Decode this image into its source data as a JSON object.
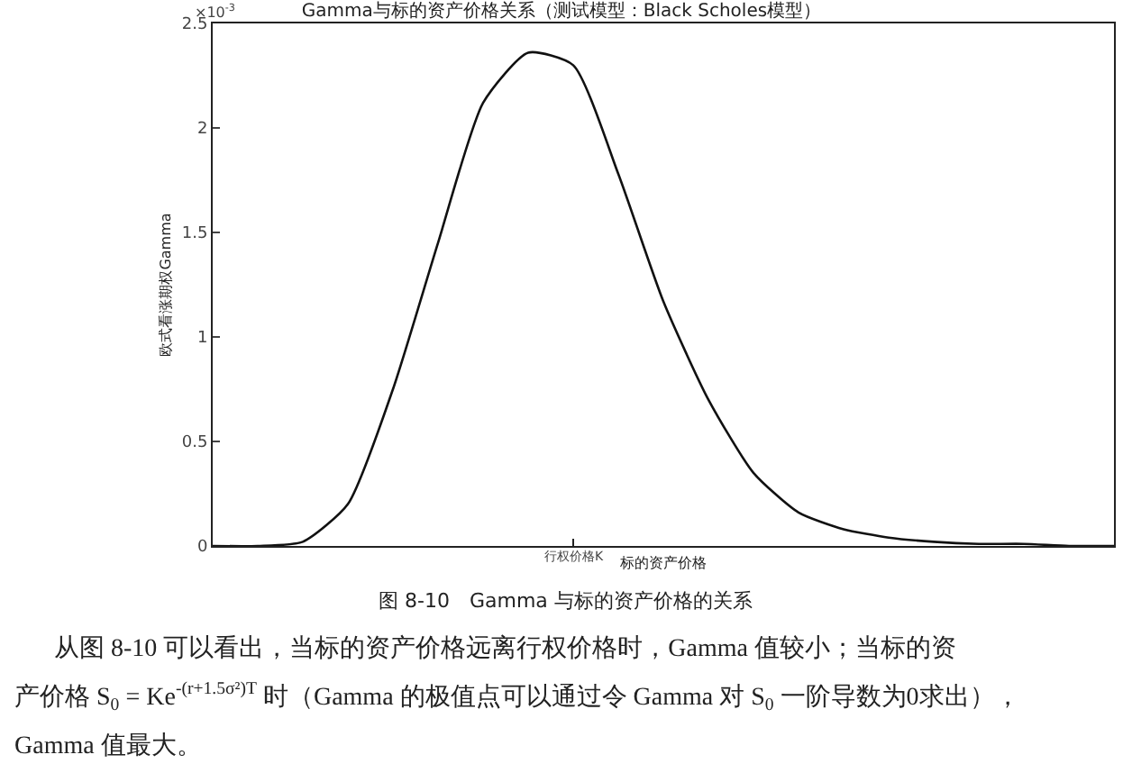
{
  "chart_data": {
    "type": "line",
    "title": "Gamma与标的资产价格关系（测试模型：Black Scholes模型）",
    "xlabel": "标的资产价格",
    "ylabel": "欧式看涨期权Gamma",
    "categories": [
      null,
      null,
      null,
      null,
      null,
      null,
      null,
      null,
      null,
      null,
      null,
      null,
      null,
      null,
      null,
      null,
      null,
      null,
      null,
      null,
      null
    ],
    "series": [
      {
        "color": "#111111",
        "values": [
          0,
          0,
          0.02,
          0.2,
          0.75,
          1.45,
          2.12,
          2.36,
          2.3,
          1.78,
          1.17,
          0.7,
          0.35,
          0.16,
          0.08,
          0.04,
          0.02,
          0.01,
          0.01,
          0,
          0
        ]
      }
    ],
    "ylim": [
      0,
      2.5
    ],
    "yticks": [
      0,
      0.5,
      1,
      1.5,
      2,
      2.5
    ],
    "marker": "none",
    "line_style": "solid",
    "annotations": [
      "×10$^{-3}$",
      "行权价格K",
      "图 8-10　Gamma 与标的资产价格的关系",
      "从图 8-10 可以看出，当标的资产价格远离行权价格时，Gamma 值较小；当标的资",
      "产价格 S$_{0}$ = Ke$^{-(r+1.5σ²)T}$ 时（Gamma 的极值点可以通过令 Gamma 对 S$_{0}$ 一阶导数为0求出），",
      "Gamma 值最大。"
    ]
  }
}
